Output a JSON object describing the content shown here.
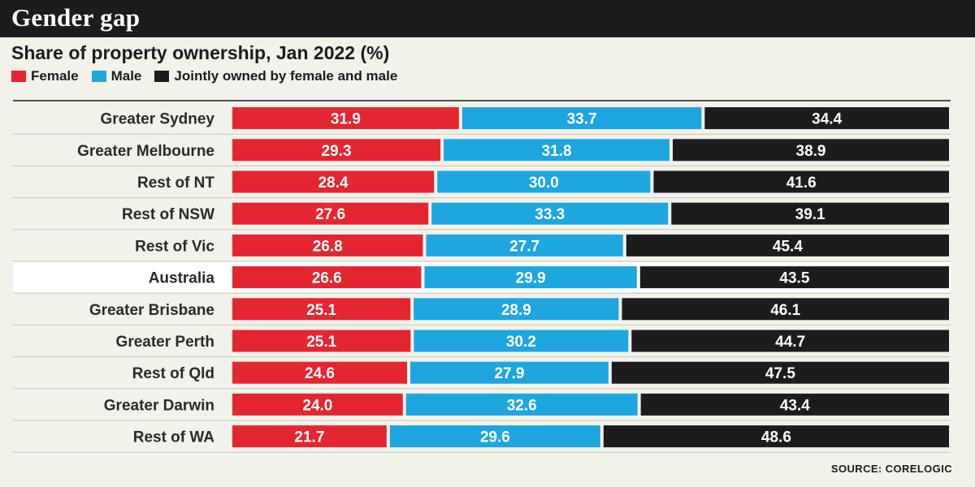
{
  "header": {
    "title": "Gender gap"
  },
  "chart_data": {
    "type": "bar",
    "orientation": "horizontal",
    "stacked": true,
    "title": "Share of property ownership, Jan 2022 (%)",
    "categories": [
      "Greater Sydney",
      "Greater Melbourne",
      "Rest of NT",
      "Rest of NSW",
      "Rest of Vic",
      "Australia",
      "Greater Brisbane",
      "Greater Perth",
      "Rest of Qld",
      "Greater Darwin",
      "Rest of WA"
    ],
    "highlighted_category": "Australia",
    "series": [
      {
        "name": "Female",
        "color": "#e3262f",
        "values": [
          31.9,
          29.3,
          28.4,
          27.6,
          26.8,
          26.6,
          25.1,
          25.1,
          24.6,
          24.0,
          21.7
        ],
        "labels": [
          "31.9",
          "29.3",
          "28.4",
          "27.6",
          "26.8",
          "26.6",
          "25.1",
          "25.1",
          "24.6",
          "24.0",
          "21.7"
        ]
      },
      {
        "name": "Male",
        "color": "#1ea6e0",
        "values": [
          33.7,
          31.8,
          30.0,
          33.3,
          27.7,
          29.9,
          28.9,
          30.2,
          27.9,
          32.6,
          29.6
        ],
        "labels": [
          "33.7",
          "31.8",
          "30.0",
          "33.3",
          "27.7",
          "29.9",
          "28.9",
          "30.2",
          "27.9",
          "32.6",
          "29.6"
        ]
      },
      {
        "name": "Jointly owned by female and male",
        "color": "#1d1b1e",
        "values": [
          34.4,
          38.9,
          41.6,
          39.1,
          45.4,
          43.5,
          46.1,
          44.7,
          47.5,
          43.4,
          48.6
        ],
        "labels": [
          "34.4",
          "38.9",
          "41.6",
          "39.1",
          "45.4",
          "43.5",
          "46.1",
          "44.7",
          "47.5",
          "43.4",
          "48.6"
        ]
      }
    ],
    "legend_position": "top-left",
    "grid": false,
    "source": "SOURCE: CORELOGIC"
  }
}
